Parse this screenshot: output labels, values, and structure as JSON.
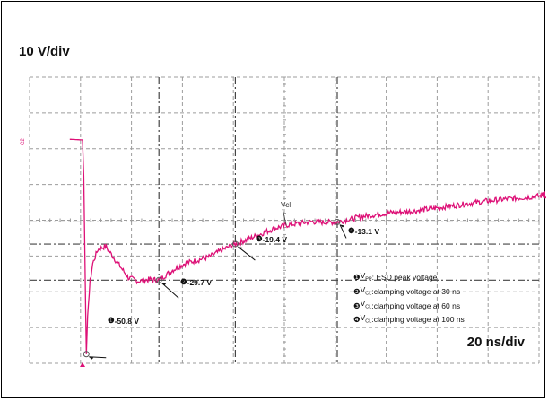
{
  "scale": {
    "volts_per_div": "10 V/div",
    "time_per_div": "20 ns/div"
  },
  "channel_marker": "C2",
  "trace_label": "Vcl",
  "colors": {
    "trace": "#dd1177",
    "grid_solid": "#9c9c9c",
    "grid_dash": "#444444",
    "frame": "#000000"
  },
  "callouts": [
    {
      "num": "❶",
      "label": "-50.8 V"
    },
    {
      "num": "❷",
      "label": "-29.7 V"
    },
    {
      "num": "❸",
      "label": "-19.4 V"
    },
    {
      "num": "❹",
      "label": "-13.1 V"
    }
  ],
  "legend": [
    {
      "num": "❶",
      "symbol": "V",
      "sub": "PP",
      "text": ": ESD peak voltage"
    },
    {
      "num": "❷",
      "symbol": "V",
      "sub": "CL",
      "text": " :clamping voltage at 30 ns"
    },
    {
      "num": "❸",
      "symbol": "V",
      "sub": "CL",
      "text": " :clamping voltage at 60 ns"
    },
    {
      "num": "❹",
      "symbol": "V",
      "sub": "CL",
      "text": " :clamping voltage at 100 ns"
    }
  ],
  "chart_data": {
    "type": "line",
    "title": "",
    "xlabel": "",
    "ylabel": "",
    "x_unit": "ns",
    "y_unit": "V",
    "grid": true,
    "series": [
      {
        "x": [
          -5,
          0,
          0.5,
          1,
          1.5,
          2,
          3,
          4,
          6,
          9,
          12,
          15,
          18,
          22,
          26,
          30,
          35,
          40,
          45,
          50,
          55,
          60,
          65,
          70,
          75,
          80,
          85,
          90,
          95,
          100,
          110,
          120,
          130,
          140,
          150,
          160,
          175,
          190,
          200
        ],
        "y": [
          10.5,
          10.3,
          0,
          -25,
          -50.8,
          -40,
          -30,
          -25,
          -21,
          -20,
          -23,
          -26,
          -29,
          -30,
          -29.5,
          -29.7,
          -27,
          -25,
          -24,
          -23,
          -21,
          -19.4,
          -18,
          -16.5,
          -15,
          -14,
          -13.5,
          -13,
          -13.2,
          -13.1,
          -11.5,
          -10.5,
          -10,
          -9,
          -8,
          -7,
          -6,
          -5,
          -4.5
        ]
      }
    ],
    "annotations": [
      {
        "x": 1.5,
        "y": -50.8,
        "label": "-50.8 V"
      },
      {
        "x": 30,
        "y": -29.7,
        "label": "-29.7 V"
      },
      {
        "x": 60,
        "y": -19.4,
        "label": "-19.4 V"
      },
      {
        "x": 100,
        "y": -13.1,
        "label": "-13.1 V"
      }
    ],
    "reference_levels": [
      -13.1,
      -19.4,
      -29.7
    ],
    "reference_times": [
      30,
      60,
      100
    ]
  }
}
